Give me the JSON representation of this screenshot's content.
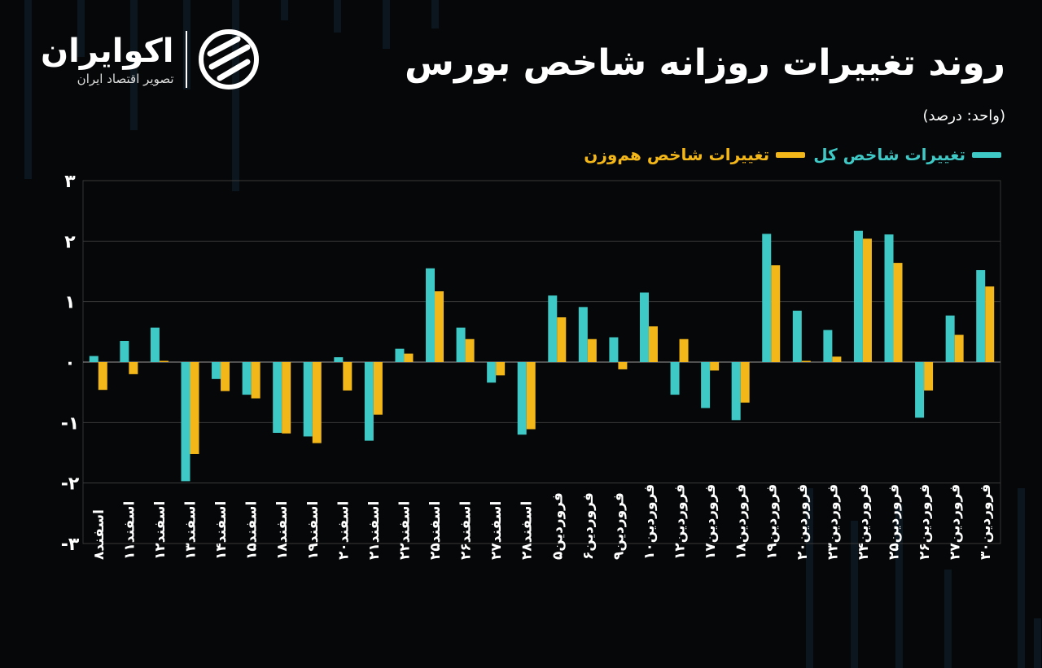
{
  "header": {
    "title": "روند تغییرات روزانه شاخص بورس",
    "unit": "(واحد: درصد)"
  },
  "logo": {
    "name": "اکوایران",
    "tagline": "تصویر اقتصاد ایران"
  },
  "colors": {
    "background": "#050708",
    "series_total": "#3ec9c6",
    "series_equal": "#f4b719",
    "grid": "#3a3a3a",
    "axis_text": "#ffffff"
  },
  "chart_data": {
    "type": "bar",
    "categories": [
      "اسفند۸",
      "اسفند۱۱",
      "اسفند۱۲",
      "اسفند۱۳",
      "اسفند۱۴",
      "اسفند۱۵",
      "اسفند۱۸",
      "اسفند۱۹",
      "اسفند۲۰",
      "اسفند۲۱",
      "اسفند۲۲",
      "اسفند۲۵",
      "اسفند۲۶",
      "اسفند۲۷",
      "اسفند۲۸",
      "فروردین۵",
      "فروردین۶",
      "فروردین۹",
      "فروردین۱۰",
      "فروردین۱۲",
      "فروردین۱۷",
      "فروردین۱۸",
      "فروردین۱۹",
      "فروردین۲۰",
      "فروردین۲۳",
      "فروردین۲۴",
      "فروردین۲۵",
      "فروردین۲۶",
      "فروردین۲۷",
      "فروردین۳۰"
    ],
    "series": [
      {
        "name": "تغییرات شاخص کل",
        "color": "#3ec9c6",
        "values": [
          0.1,
          0.35,
          0.57,
          -1.97,
          -0.28,
          -0.54,
          -1.17,
          -1.23,
          0.08,
          -1.3,
          0.22,
          1.55,
          0.57,
          -0.34,
          -1.2,
          1.1,
          0.91,
          0.41,
          1.15,
          -0.54,
          -0.76,
          -0.96,
          2.12,
          0.85,
          0.53,
          2.17,
          2.11,
          -0.92,
          0.77,
          1.52
        ]
      },
      {
        "name": "تغییرات شاخص هم‌وزن",
        "color": "#f4b719",
        "values": [
          -0.46,
          -0.2,
          0.02,
          -1.52,
          -0.48,
          -0.6,
          -1.18,
          -1.34,
          -0.47,
          -0.87,
          0.14,
          1.17,
          0.38,
          -0.22,
          -1.11,
          0.74,
          0.38,
          -0.12,
          0.59,
          0.38,
          -0.14,
          -0.67,
          1.6,
          0.02,
          0.09,
          2.04,
          1.64,
          -0.47,
          0.45,
          1.25
        ]
      }
    ],
    "yticks": [
      "۳",
      "۲",
      "۱",
      "۰",
      "-۱",
      "-۲",
      "-۳"
    ],
    "ylim": [
      -3,
      3
    ],
    "grid": true,
    "legend_position": "top-right"
  }
}
